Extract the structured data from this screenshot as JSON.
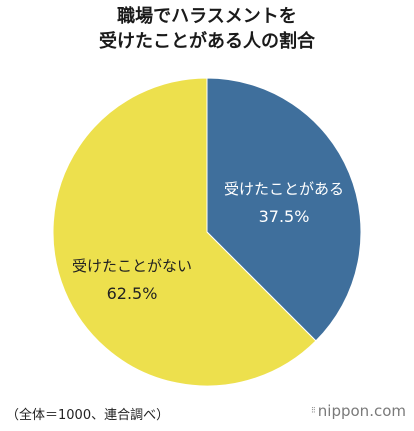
{
  "title": {
    "line1": "職場でハラスメントを",
    "line2": "受けたことがある人の割合"
  },
  "chart_data": {
    "type": "pie",
    "slices": [
      {
        "label": "受けたことがある",
        "value": 37.5,
        "display": "37.5%",
        "color": "#3f6f9c"
      },
      {
        "label": "受けたことがない",
        "value": 62.5,
        "display": "62.5%",
        "color": "#ede04d"
      }
    ],
    "start": "12 o'clock",
    "direction": "clockwise"
  },
  "footnote": "（全体＝1000、連合調べ）",
  "brand": {
    "name": "nippon",
    "suffix": ".com",
    "mark_icon": "nippon-logo-icon"
  },
  "colors": {
    "text": "#222222",
    "label_on_blue": "#ffffff",
    "label_on_yellow": "#222222",
    "brand": "#7a7a7a"
  }
}
